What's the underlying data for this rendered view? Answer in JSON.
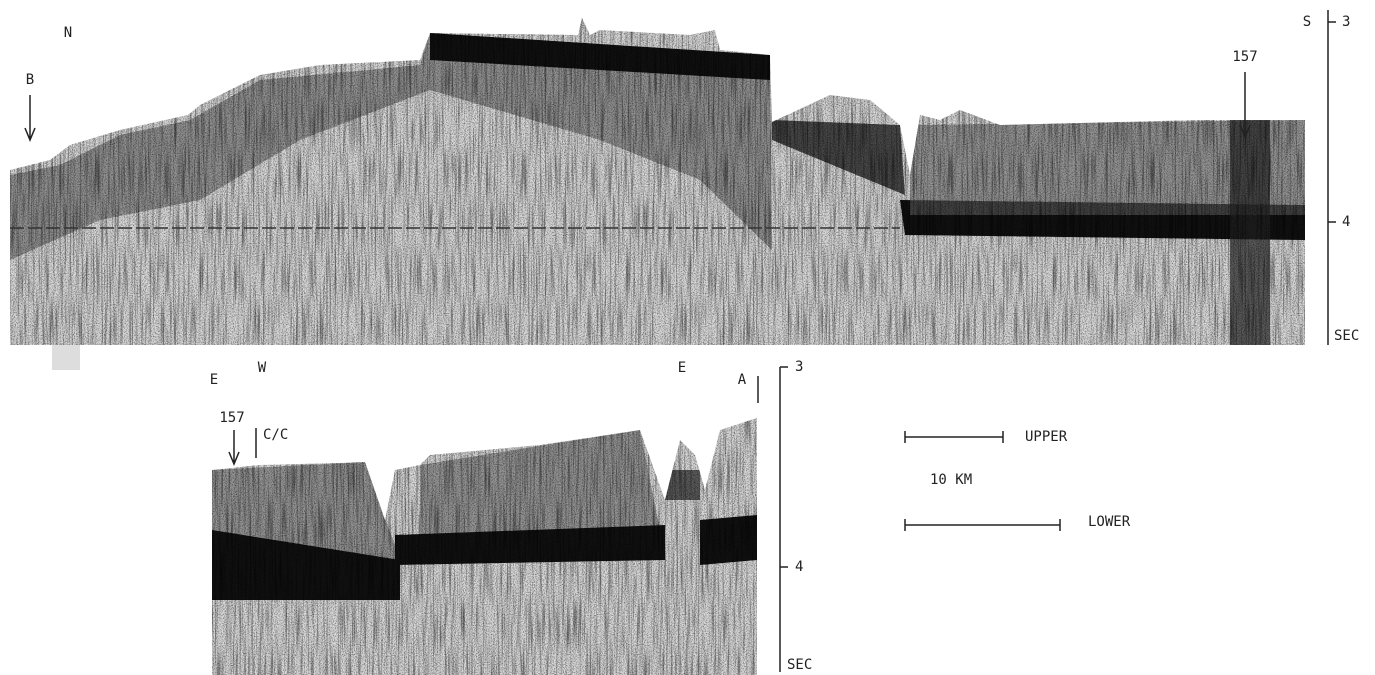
{
  "upper_profile": {
    "left_direction": "N",
    "right_direction": "S",
    "point": "B",
    "site": "157",
    "axis": {
      "ticks": [
        "3",
        "4"
      ],
      "unit": "SEC"
    }
  },
  "lower_profile": {
    "left_direction": "E",
    "turn_direction": "W",
    "right_direction": "E",
    "point": "A",
    "site": "157",
    "crossing": "C/C",
    "axis": {
      "ticks": [
        "3",
        "4"
      ],
      "unit": "SEC"
    }
  },
  "scale": {
    "upper": "UPPER",
    "distance": "10 KM",
    "lower": "LOWER"
  }
}
